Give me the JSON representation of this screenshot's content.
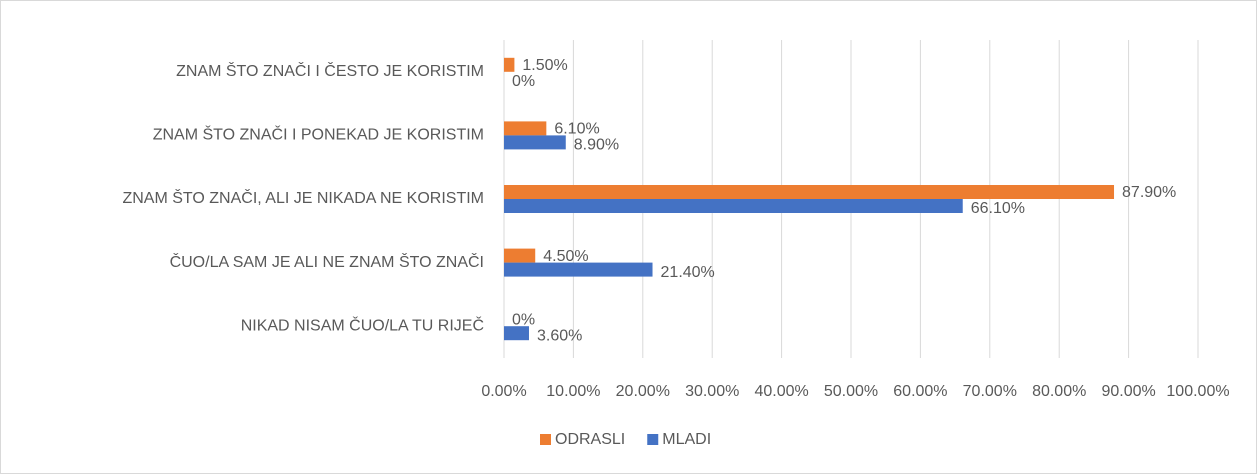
{
  "chart_data": {
    "type": "barh",
    "categories": [
      "ZNAM ŠTO ZNAČI I ČESTO JE KORISTIM",
      "ZNAM ŠTO ZNAČI I PONEKAD JE KORISTIM",
      "ZNAM ŠTO ZNAČI, ALI JE NIKADA NE KORISTIM",
      "ČUO/LA SAM JE ALI NE ZNAM ŠTO ZNAČI",
      "NIKAD NISAM ČUO/LA TU RIJEČ"
    ],
    "series": [
      {
        "name": "ODRASLI",
        "color": "#ed7d31",
        "values": [
          1.5,
          6.1,
          87.9,
          4.5,
          0
        ],
        "value_labels": [
          "1.50%",
          "6.10%",
          "87.90%",
          "4.50%",
          "0%"
        ]
      },
      {
        "name": "MLADI",
        "color": "#4472c4",
        "values": [
          0,
          8.9,
          66.1,
          21.4,
          3.6
        ],
        "value_labels": [
          "0%",
          "8.90%",
          "66.10%",
          "21.40%",
          "3.60%"
        ]
      }
    ],
    "xlim": [
      0,
      100
    ],
    "xticks": [
      {
        "value": 0,
        "label": "0.00%"
      },
      {
        "value": 10,
        "label": "10.00%"
      },
      {
        "value": 20,
        "label": "20.00%"
      },
      {
        "value": 30,
        "label": "30.00%"
      },
      {
        "value": 40,
        "label": "40.00%"
      },
      {
        "value": 50,
        "label": "50.00%"
      },
      {
        "value": 60,
        "label": "60.00%"
      },
      {
        "value": 70,
        "label": "70.00%"
      },
      {
        "value": 80,
        "label": "80.00%"
      },
      {
        "value": 90,
        "label": "90.00%"
      },
      {
        "value": 100,
        "label": "100.00%"
      }
    ],
    "grid": true,
    "legend": "bottom"
  }
}
